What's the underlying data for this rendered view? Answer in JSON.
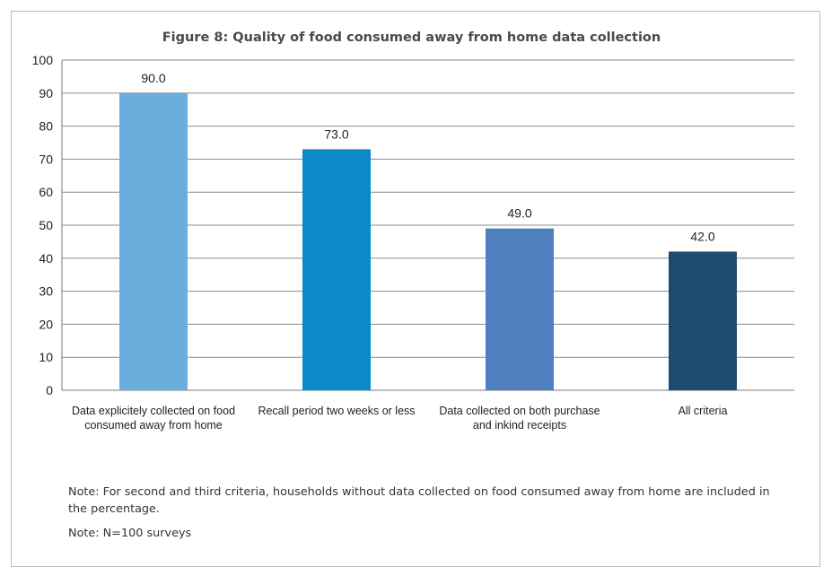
{
  "chart_data": {
    "type": "bar",
    "title": "Figure 8: Quality of food consumed away from home data collection",
    "categories": [
      "Data explicitely collected on food consumed away from home",
      "Recall period two weeks or less",
      "Data collected on both purchase and inkind receipts",
      "All criteria"
    ],
    "values": [
      90.0,
      73.0,
      49.0,
      42.0
    ],
    "value_labels": [
      "90.0",
      "73.0",
      "49.0",
      "42.0"
    ],
    "colors": [
      "#6aaede",
      "#0a8bc8",
      "#4f7fbf",
      "#1f4a70"
    ],
    "ylim": [
      0,
      100
    ],
    "yticks": [
      "0",
      "10",
      "20",
      "30",
      "40",
      "50",
      "60",
      "70",
      "80",
      "90",
      "100"
    ],
    "grid": true
  },
  "notes": {
    "note1": "Note: For second and third criteria, households without data collected on food consumed away from home are included in the percentage.",
    "note2": "Note: N=100 surveys"
  }
}
